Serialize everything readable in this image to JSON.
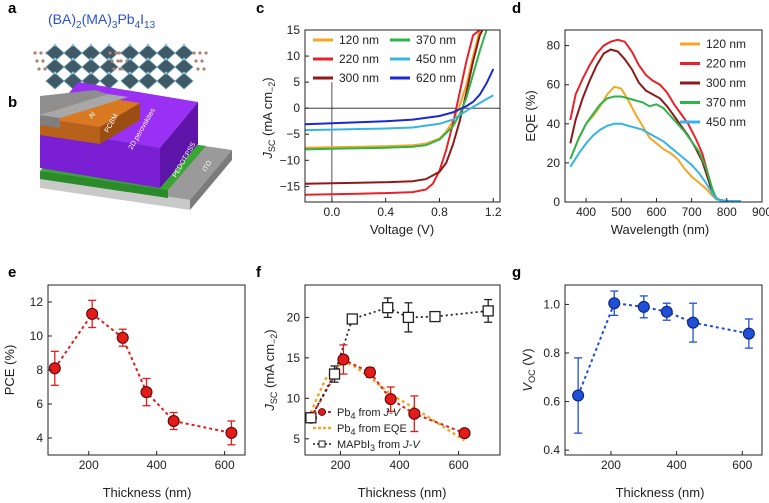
{
  "figure": {
    "panel_labels": [
      "a",
      "b",
      "c",
      "d",
      "e",
      "f",
      "g"
    ],
    "panel_a": {
      "formula_parts": [
        "(BA)",
        "2",
        "(MA)",
        "3",
        "Pb",
        "4",
        "I",
        "13"
      ]
    },
    "panel_b": {
      "layers": [
        "Al",
        "PCBM",
        "2D perovskites",
        "PEDOT:PSS",
        "ITO"
      ]
    }
  },
  "colors": {
    "120": "#f6a623",
    "220": "#e8222a",
    "300": "#8e1a1a",
    "370": "#2db54a",
    "450": "#36b4e8",
    "620": "#1a2ad0",
    "marker_red": "#e31b1b",
    "line_red": "#e31b1b",
    "line_orange": "#f5a623",
    "blue_marker": "#1f4fd6",
    "al": "#8c8c8c",
    "pcbm": "#c86f1c",
    "perov": "#8a2be2",
    "pedot": "#3aa435",
    "ito": "#b3b3b3"
  },
  "chart_data": [
    {
      "id": "c",
      "type": "line",
      "xlabel": "Voltage (V)",
      "ylabel_parts": [
        "J",
        "SC",
        " (mA cm",
        "−2",
        ")"
      ],
      "xlim": [
        -0.2,
        1.25
      ],
      "ylim": [
        -18,
        15
      ],
      "xticks": [
        0.0,
        0.4,
        0.8,
        1.2
      ],
      "xticklabels": [
        "0.0",
        "0.4",
        "0.8",
        "1.2"
      ],
      "yticks": [
        -15,
        -10,
        -5,
        0,
        5,
        10,
        15
      ],
      "yticklabels": [
        "−15",
        "−10",
        "−5",
        "0",
        "5",
        "10",
        "15"
      ],
      "legend_position": "top",
      "series": [
        {
          "name": "120 nm",
          "color_key": "120",
          "x": [
            -0.2,
            0,
            0.2,
            0.4,
            0.6,
            0.7,
            0.8,
            0.85,
            0.9,
            0.95,
            1.0,
            1.05,
            1.1
          ],
          "y": [
            -7.6,
            -7.5,
            -7.4,
            -7.3,
            -7.1,
            -6.8,
            -5.8,
            -4.5,
            -2.5,
            0.5,
            4.5,
            10,
            15
          ]
        },
        {
          "name": "220 nm",
          "color_key": "220",
          "x": [
            -0.2,
            0,
            0.2,
            0.4,
            0.6,
            0.7,
            0.75,
            0.8,
            0.85,
            0.9,
            0.95,
            1.0,
            1.05,
            1.1
          ],
          "y": [
            -16.6,
            -16.5,
            -16.4,
            -16.3,
            -16.1,
            -15.6,
            -14.5,
            -12,
            -8,
            -3,
            3,
            9,
            14,
            15
          ]
        },
        {
          "name": "300 nm",
          "color_key": "300",
          "x": [
            -0.2,
            0,
            0.2,
            0.4,
            0.6,
            0.7,
            0.8,
            0.85,
            0.9,
            0.95,
            1.0,
            1.05,
            1.1,
            1.12
          ],
          "y": [
            -14.5,
            -14.4,
            -14.3,
            -14.2,
            -14,
            -13.6,
            -12.2,
            -10.5,
            -7,
            -2.5,
            3,
            9,
            14,
            15
          ]
        },
        {
          "name": "370 nm",
          "color_key": "370",
          "x": [
            -0.2,
            0,
            0.2,
            0.4,
            0.6,
            0.7,
            0.8,
            0.9,
            0.95,
            1.0,
            1.05,
            1.1,
            1.15
          ],
          "y": [
            -7.9,
            -7.8,
            -7.7,
            -7.6,
            -7.4,
            -7.1,
            -6,
            -3.5,
            -1.2,
            2,
            6.5,
            11,
            15
          ]
        },
        {
          "name": "450 nm",
          "color_key": "450",
          "x": [
            -0.2,
            0,
            0.2,
            0.4,
            0.6,
            0.8,
            0.9,
            1.0,
            1.1,
            1.2
          ],
          "y": [
            -4.2,
            -4.1,
            -4.0,
            -3.9,
            -3.7,
            -3.0,
            -2.2,
            -0.5,
            1,
            2.5
          ]
        },
        {
          "name": "620 nm",
          "color_key": "620",
          "x": [
            -0.2,
            0,
            0.2,
            0.4,
            0.6,
            0.8,
            0.9,
            1.0,
            1.05,
            1.1,
            1.15,
            1.2
          ],
          "y": [
            -3.1,
            -2.9,
            -2.7,
            -2.5,
            -2.2,
            -1.5,
            -0.8,
            0.4,
            1.2,
            2.6,
            4.8,
            7.5
          ]
        }
      ]
    },
    {
      "id": "d",
      "type": "line",
      "xlabel": "Wavelength (nm)",
      "ylabel": "EQE (%)",
      "xlim": [
        340,
        900
      ],
      "ylim": [
        0,
        88
      ],
      "xticks": [
        400,
        500,
        600,
        700,
        800,
        900
      ],
      "xticklabels": [
        "400",
        "500",
        "600",
        "700",
        "800",
        "900"
      ],
      "yticks": [
        0,
        20,
        40,
        60,
        80
      ],
      "yticklabels": [
        "0",
        "20",
        "40",
        "60",
        "80"
      ],
      "legend_position": "top-right",
      "series": [
        {
          "name": "120 nm",
          "color_key": "120",
          "x": [
            355,
            380,
            400,
            420,
            440,
            460,
            480,
            500,
            520,
            540,
            560,
            580,
            600,
            620,
            640,
            660,
            680,
            700,
            720,
            740,
            760,
            770,
            780,
            800,
            840
          ],
          "y": [
            22,
            33,
            40,
            44,
            49,
            55,
            59,
            58,
            52,
            45,
            39,
            33,
            30,
            27,
            25,
            22,
            17,
            13,
            10,
            7,
            3,
            1.5,
            1,
            0.5,
            0.5
          ]
        },
        {
          "name": "220 nm",
          "color_key": "220",
          "x": [
            355,
            370,
            390,
            410,
            430,
            450,
            470,
            490,
            510,
            530,
            550,
            570,
            590,
            610,
            630,
            650,
            670,
            690,
            710,
            730,
            750,
            760,
            770,
            780,
            800,
            840
          ],
          "y": [
            42,
            55,
            63,
            70,
            76,
            80,
            82,
            83,
            82,
            77,
            70,
            65,
            62,
            60,
            56,
            50,
            45,
            40,
            33,
            25,
            12,
            5,
            2,
            1,
            0.5,
            0.5
          ]
        },
        {
          "name": "300 nm",
          "color_key": "300",
          "x": [
            355,
            370,
            390,
            410,
            430,
            450,
            470,
            490,
            510,
            530,
            550,
            570,
            590,
            610,
            630,
            650,
            670,
            690,
            710,
            730,
            750,
            760,
            770,
            780,
            800,
            840
          ],
          "y": [
            30,
            42,
            53,
            62,
            70,
            76,
            78,
            77,
            73,
            68,
            61,
            57,
            55,
            53,
            49,
            44,
            39,
            34,
            28,
            21,
            10,
            4,
            2,
            1,
            0.5,
            0.5
          ]
        },
        {
          "name": "370 nm",
          "color_key": "370",
          "x": [
            355,
            380,
            400,
            420,
            440,
            460,
            480,
            500,
            520,
            540,
            560,
            580,
            600,
            620,
            640,
            660,
            680,
            700,
            720,
            740,
            760,
            770,
            780,
            800,
            840
          ],
          "y": [
            22,
            33,
            40,
            45,
            50,
            53,
            54,
            54,
            53,
            52,
            51,
            49,
            50,
            48,
            44,
            40,
            36,
            31,
            26,
            18,
            6,
            2,
            1,
            0.5,
            0.5
          ]
        },
        {
          "name": "450 nm",
          "color_key": "450",
          "x": [
            355,
            380,
            400,
            420,
            440,
            460,
            480,
            500,
            520,
            540,
            560,
            580,
            600,
            620,
            640,
            660,
            680,
            700,
            720,
            740,
            760,
            770,
            780,
            800,
            840
          ],
          "y": [
            18,
            25,
            30,
            34,
            37,
            39,
            40,
            40,
            39,
            38,
            37,
            35,
            33,
            31,
            28,
            25,
            22,
            19,
            15,
            10,
            4,
            1.5,
            1,
            0.5,
            0.5
          ]
        }
      ]
    },
    {
      "id": "e",
      "type": "scatter",
      "xlabel": "Thickness (nm)",
      "ylabel": "PCE (%)",
      "xlim": [
        80,
        660
      ],
      "ylim": [
        3,
        13
      ],
      "xticks": [
        200,
        400,
        600
      ],
      "xticklabels": [
        "200",
        "400",
        "600"
      ],
      "yticks": [
        4,
        6,
        8,
        10,
        12
      ],
      "yticklabels": [
        "4",
        "6",
        "8",
        "10",
        "12"
      ],
      "series": [
        {
          "x": [
            100,
            210,
            300,
            370,
            450,
            620
          ],
          "y": [
            8.1,
            11.3,
            9.9,
            6.7,
            5.0,
            4.3
          ],
          "err": [
            1.0,
            0.8,
            0.5,
            0.8,
            0.5,
            0.7
          ]
        }
      ]
    },
    {
      "id": "f",
      "type": "scatter",
      "xlabel": "Thickness (nm)",
      "ylabel_parts": [
        "J",
        "SC",
        " (mA cm",
        "−2",
        ")"
      ],
      "xlim": [
        80,
        740
      ],
      "ylim": [
        3,
        24
      ],
      "xticks": [
        200,
        400,
        600
      ],
      "xticklabels": [
        "200",
        "400",
        "600"
      ],
      "yticks": [
        5,
        10,
        15,
        20
      ],
      "yticklabels": [
        "5",
        "10",
        "15",
        "20"
      ],
      "legend_position": "bottom-left",
      "series": [
        {
          "name_parts": [
            "Pb",
            "4",
            " from ",
            "J-V"
          ],
          "style": "red_dots",
          "x": [
            100,
            210,
            300,
            370,
            450,
            620
          ],
          "y": [
            7.6,
            14.8,
            13.2,
            9.9,
            8.1,
            5.7
          ],
          "err": [
            0.6,
            1.8,
            0.6,
            1.5,
            2.2,
            0.4
          ]
        },
        {
          "name_parts": [
            "Pb",
            "4",
            " from EQE"
          ],
          "style": "orange_dots",
          "x": [
            100,
            120,
            150,
            200,
            220,
            250,
            300,
            370,
            450,
            620
          ],
          "y": [
            8.2,
            10,
            12.4,
            14.3,
            14.4,
            13.9,
            12.6,
            10.5,
            8.8,
            4.8
          ]
        },
        {
          "name_parts": [
            "MAPbI",
            "3",
            " from ",
            "J-V"
          ],
          "style": "black_squares",
          "x": [
            100,
            180,
            240,
            360,
            430,
            520,
            700
          ],
          "y": [
            7.6,
            13.0,
            19.8,
            21.2,
            20.0,
            20.1,
            20.8
          ],
          "err": [
            0.5,
            1.0,
            0.4,
            1.2,
            1.8,
            0.5,
            1.4
          ]
        }
      ]
    },
    {
      "id": "g",
      "type": "scatter",
      "xlabel": "Thickness (nm)",
      "ylabel_parts": [
        "V",
        "OC",
        " (V)"
      ],
      "xlim": [
        60,
        660
      ],
      "ylim": [
        0.38,
        1.08
      ],
      "xticks": [
        200,
        400,
        600
      ],
      "xticklabels": [
        "200",
        "400",
        "600"
      ],
      "yticks": [
        0.4,
        0.6,
        0.8,
        1.0
      ],
      "yticklabels": [
        "0.4",
        "0.6",
        "0.8",
        "1.0"
      ],
      "series": [
        {
          "x": [
            100,
            210,
            300,
            370,
            450,
            620
          ],
          "y": [
            0.625,
            1.005,
            0.99,
            0.97,
            0.925,
            0.88
          ],
          "err": [
            0.155,
            0.05,
            0.045,
            0.035,
            0.08,
            0.06
          ]
        }
      ]
    }
  ]
}
